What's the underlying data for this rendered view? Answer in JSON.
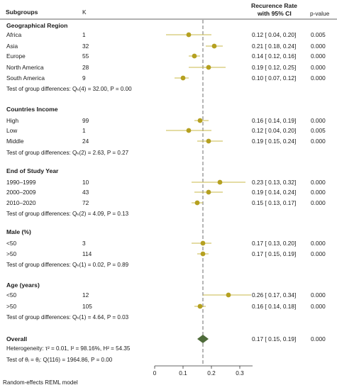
{
  "headers": {
    "subgroups": "Subgroups",
    "k": "K",
    "rate_line1": "Recurence Rate",
    "rate_line2": "with 95% CI",
    "pvalue": "p-value"
  },
  "groups": [
    {
      "title": "Geographical Region",
      "rows": [
        {
          "label": "Africa",
          "k": "1",
          "est": 0.12,
          "lo": 0.04,
          "hi": 0.2,
          "ci_text": "0.12 [ 0.04, 0.20]",
          "p": "0.005"
        },
        {
          "label": "Asia",
          "k": "32",
          "est": 0.21,
          "lo": 0.18,
          "hi": 0.24,
          "ci_text": "0.21 [ 0.18, 0.24]",
          "p": "0.000"
        },
        {
          "label": "Europe",
          "k": "55",
          "est": 0.14,
          "lo": 0.12,
          "hi": 0.16,
          "ci_text": "0.14 [ 0.12, 0.16]",
          "p": "0.000"
        },
        {
          "label": "North America",
          "k": "28",
          "est": 0.19,
          "lo": 0.12,
          "hi": 0.25,
          "ci_text": "0.19 [ 0.12, 0.25]",
          "p": "0.000"
        },
        {
          "label": "South America",
          "k": "9",
          "est": 0.1,
          "lo": 0.07,
          "hi": 0.12,
          "ci_text": "0.10 [ 0.07, 0.12]",
          "p": "0.000"
        }
      ],
      "test": "Test of group differences: Qₕ(4) = 32.00, P = 0.00"
    },
    {
      "title": "Countries Income",
      "rows": [
        {
          "label": "High",
          "k": "99",
          "est": 0.16,
          "lo": 0.14,
          "hi": 0.19,
          "ci_text": "0.16 [ 0.14, 0.19]",
          "p": "0.000"
        },
        {
          "label": "Low",
          "k": "1",
          "est": 0.12,
          "lo": 0.04,
          "hi": 0.2,
          "ci_text": "0.12 [ 0.04, 0.20]",
          "p": "0.005"
        },
        {
          "label": "Middle",
          "k": "24",
          "est": 0.19,
          "lo": 0.15,
          "hi": 0.24,
          "ci_text": "0.19 [ 0.15, 0.24]",
          "p": "0.000"
        }
      ],
      "test": "Test of group differences: Qₕ(2) = 2.63, P = 0.27"
    },
    {
      "title": "End of Study Year",
      "rows": [
        {
          "label": "1990–1999",
          "k": "10",
          "est": 0.23,
          "lo": 0.13,
          "hi": 0.32,
          "ci_text": "0.23 [ 0.13, 0.32]",
          "p": "0.000"
        },
        {
          "label": "2000–2009",
          "k": "43",
          "est": 0.19,
          "lo": 0.14,
          "hi": 0.24,
          "ci_text": "0.19 [ 0.14, 0.24]",
          "p": "0.000"
        },
        {
          "label": "2010–2020",
          "k": "72",
          "est": 0.15,
          "lo": 0.13,
          "hi": 0.17,
          "ci_text": "0.15 [ 0.13, 0.17]",
          "p": "0.000"
        }
      ],
      "test": "Test of group differences: Qₕ(2) = 4.09, P = 0.13"
    },
    {
      "title": "Male (%)",
      "rows": [
        {
          "label": "<50",
          "k": "3",
          "est": 0.17,
          "lo": 0.13,
          "hi": 0.2,
          "ci_text": "0.17 [ 0.13, 0.20]",
          "p": "0.000"
        },
        {
          "label": ">50",
          "k": "114",
          "est": 0.17,
          "lo": 0.15,
          "hi": 0.19,
          "ci_text": "0.17 [ 0.15, 0.19]",
          "p": "0.000"
        }
      ],
      "test": "Test of group differences: Qₕ(1) = 0.02, P = 0.89"
    },
    {
      "title": "Age (years)",
      "rows": [
        {
          "label": "<50",
          "k": "12",
          "est": 0.26,
          "lo": 0.17,
          "hi": 0.34,
          "ci_text": "0.26 [ 0.17, 0.34]",
          "p": "0.000"
        },
        {
          "label": ">50",
          "k": "105",
          "est": 0.16,
          "lo": 0.14,
          "hi": 0.18,
          "ci_text": "0.16 [ 0.14, 0.18]",
          "p": "0.000"
        }
      ],
      "test": "Test of group differences: Qₕ(1) = 4.64, P = 0.03"
    }
  ],
  "overall": {
    "title": "Overall",
    "est": 0.17,
    "lo": 0.15,
    "hi": 0.19,
    "ci_text": "0.17 [ 0.15, 0.19]",
    "p": "0.000",
    "heterogeneity": "Heterogeneity: τ² = 0.01, I² = 98.16%, H² = 54.35",
    "test": "Test of θᵢ = θⱼ: Q(116) = 1964.86, P = 0.00"
  },
  "footer": "Random-effects REML model",
  "chart_data": {
    "type": "forest",
    "x_ticks": [
      0,
      0.1,
      0.2,
      0.3
    ],
    "x_tick_labels": [
      "0",
      "0.1",
      "0.2",
      "0.3"
    ],
    "xlim": [
      0,
      0.345
    ],
    "reference_line": 0.17,
    "colors": {
      "marker": "#b5a020",
      "ci_line": "#c8b84a",
      "overall_diamond": "#4e6b3a",
      "reference_line": "#7a7a7a"
    }
  }
}
